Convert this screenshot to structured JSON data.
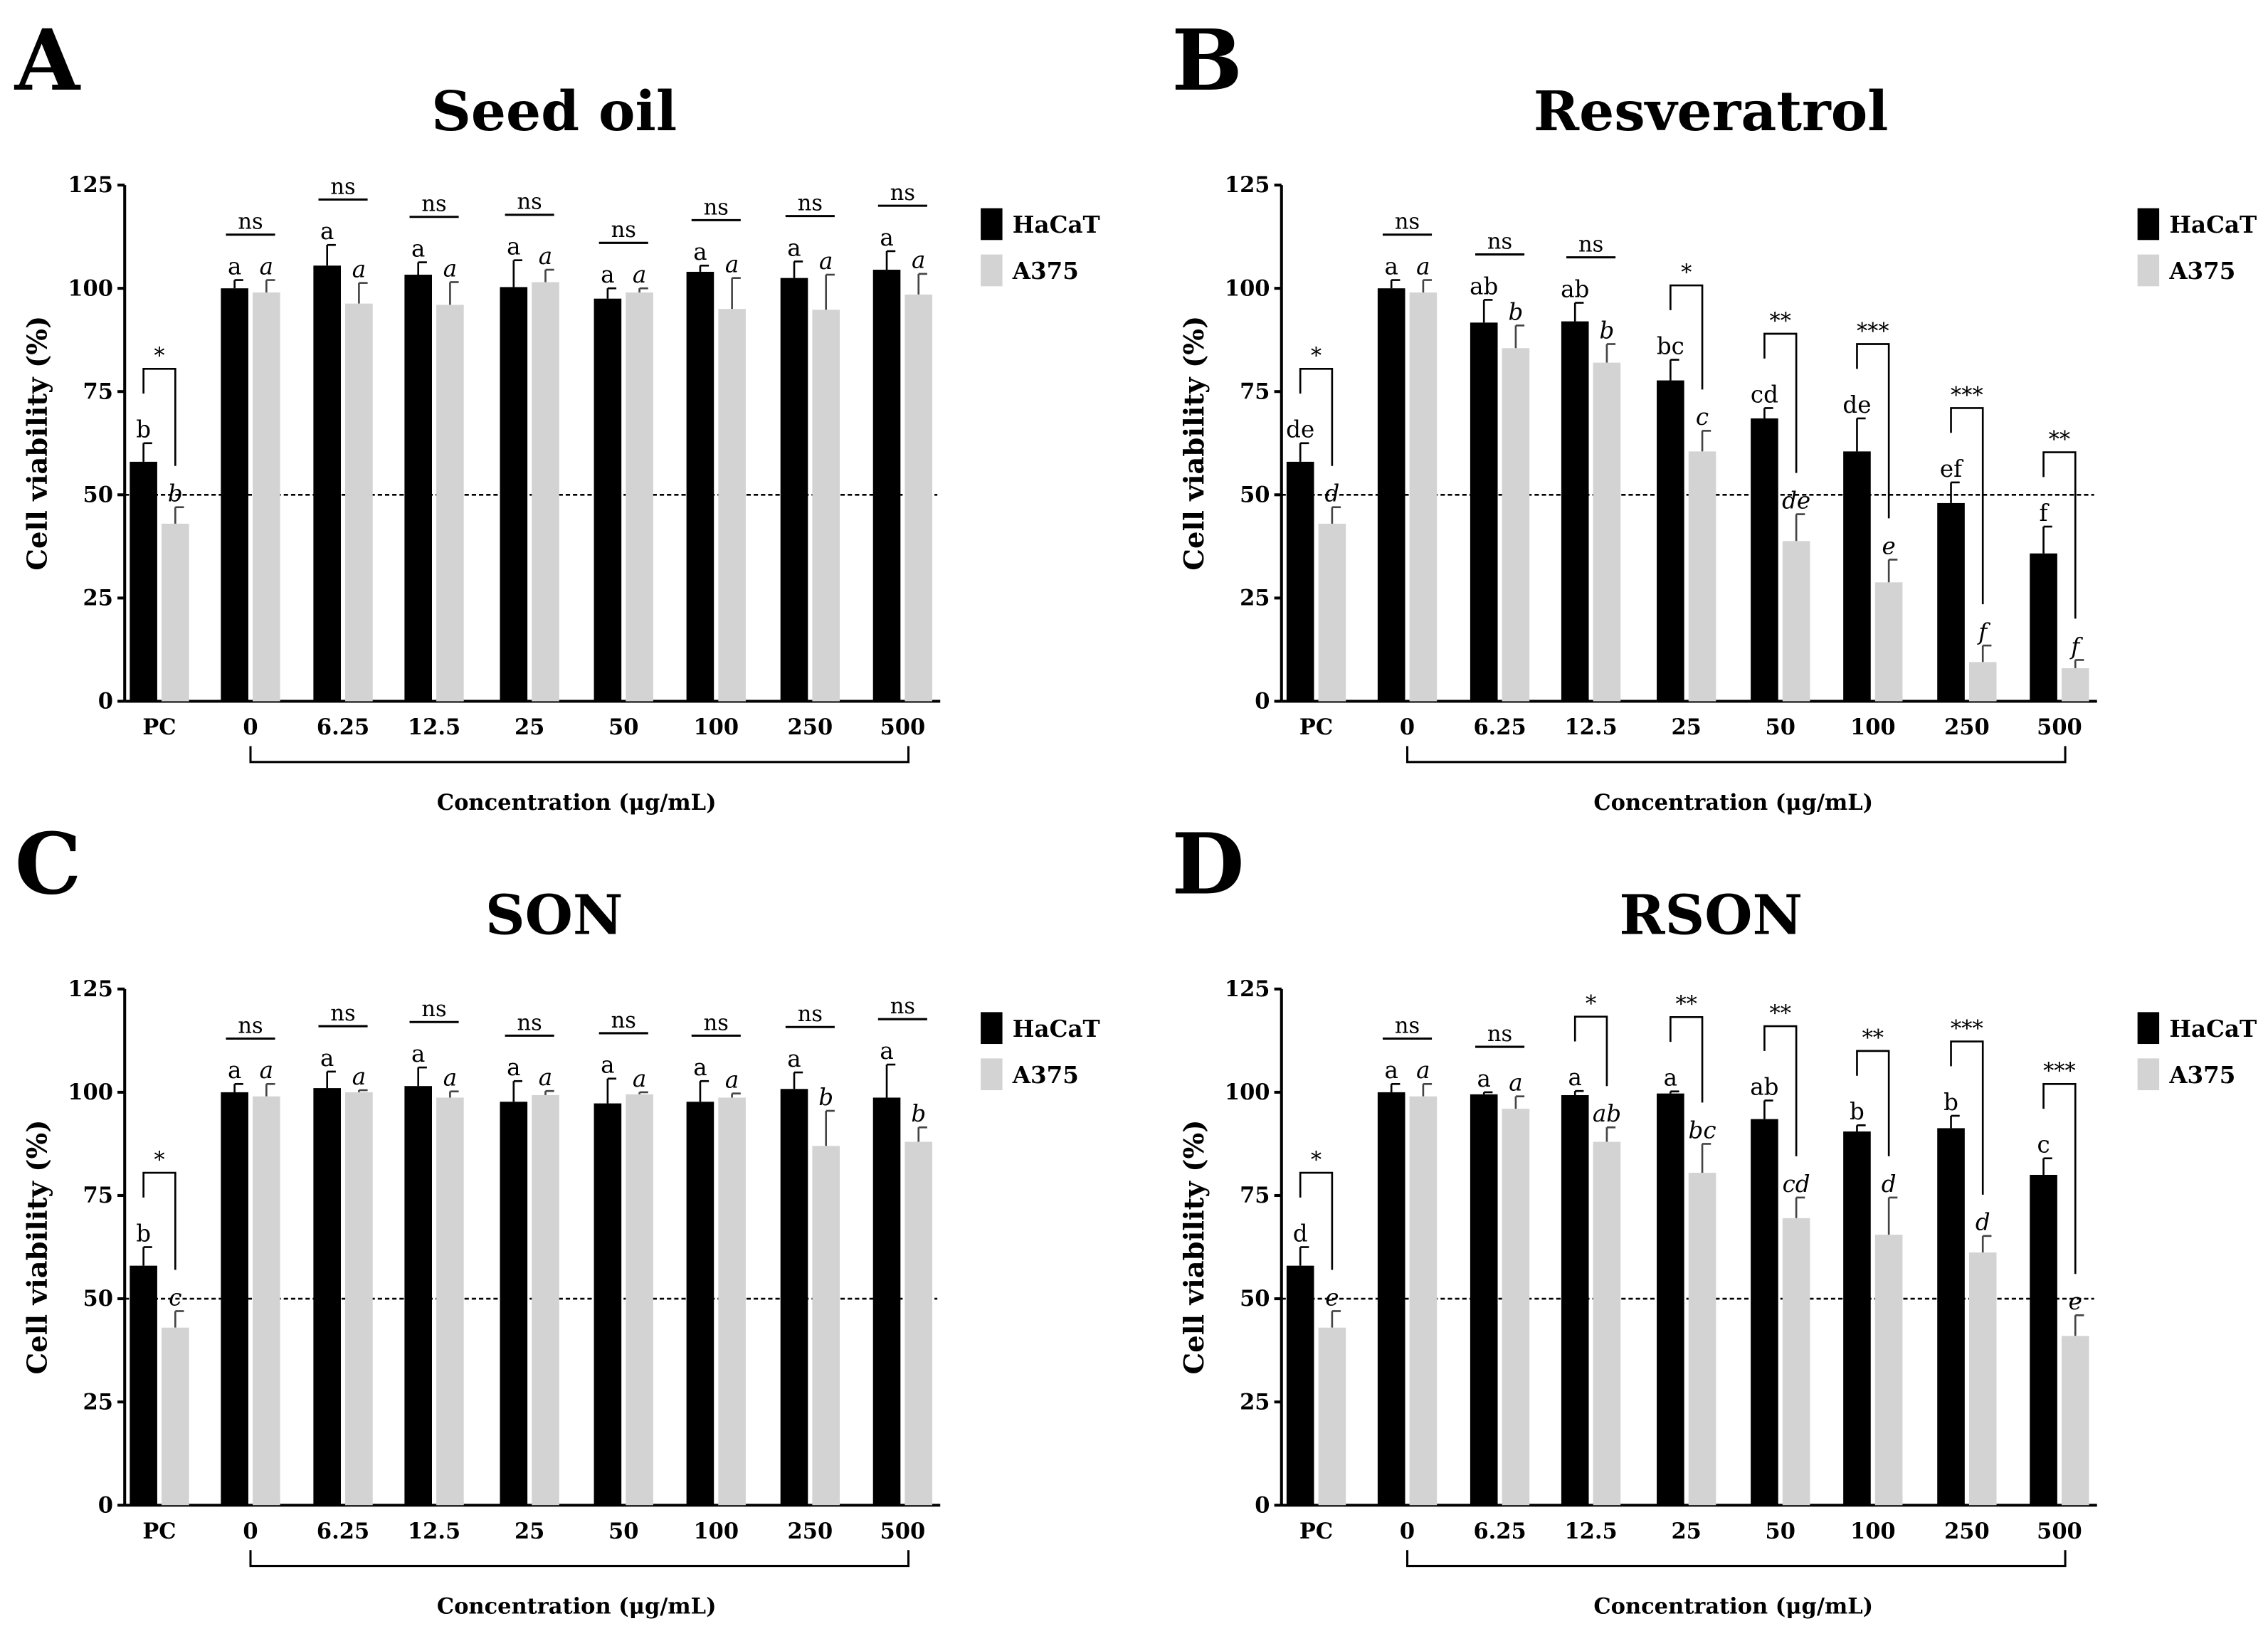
{
  "chart_data": [
    {
      "type": "bar",
      "panel_label": "A",
      "title": "Seed oil",
      "xlabel": "Concentration (μg/mL)",
      "ylabel": "Cell viability (%)",
      "ylim": [
        0,
        125
      ],
      "yticks": [
        "0",
        "25",
        "50",
        "75",
        "100",
        "125"
      ],
      "reference_line": 50,
      "legend": "top-right",
      "categories": [
        "PC",
        "0",
        "6.25",
        "12.5",
        "25",
        "50",
        "100",
        "250",
        "500"
      ],
      "series": [
        {
          "name": "HaCaT",
          "color": "#000000",
          "values": [
            58,
            100,
            105.5,
            103.3,
            100.3,
            97.5,
            104,
            102.5,
            104.5
          ],
          "errors": [
            4.5,
            2,
            5,
            3,
            6.5,
            2.5,
            1.5,
            4,
            4.5
          ],
          "letters": [
            "b",
            "a",
            "a",
            "a",
            "a",
            "a",
            "a",
            "a",
            "a"
          ]
        },
        {
          "name": "A375",
          "color": "#d3d3d3",
          "values": [
            43,
            99,
            96.3,
            96,
            101.5,
            99,
            95,
            94.8,
            98.5
          ],
          "errors": [
            4,
            3,
            5,
            5.5,
            3,
            1,
            7.5,
            8.5,
            5
          ],
          "letters": [
            "b",
            "a",
            "a",
            "a",
            "a",
            "a",
            "a",
            "a",
            "a"
          ]
        }
      ],
      "significance": [
        "*",
        "ns",
        "ns",
        "ns",
        "ns",
        "ns",
        "ns",
        "ns",
        "ns"
      ]
    },
    {
      "type": "bar",
      "panel_label": "B",
      "title": "Resveratrol",
      "xlabel": "Concentration (μg/mL)",
      "ylabel": "Cell viability (%)",
      "ylim": [
        0,
        125
      ],
      "yticks": [
        "0",
        "25",
        "50",
        "75",
        "100",
        "125"
      ],
      "reference_line": 50,
      "legend": "top-right",
      "categories": [
        "PC",
        "0",
        "6.25",
        "12.5",
        "25",
        "50",
        "100",
        "250",
        "500"
      ],
      "series": [
        {
          "name": "HaCaT",
          "color": "#000000",
          "values": [
            58,
            100,
            91.7,
            92,
            77.7,
            68.5,
            60.5,
            48,
            35.8
          ],
          "errors": [
            4.5,
            2,
            5.5,
            4.5,
            5,
            2.5,
            8,
            5,
            6.5
          ],
          "letters": [
            "de",
            "a",
            "ab",
            "ab",
            "bc",
            "cd",
            "de",
            "ef",
            "f"
          ]
        },
        {
          "name": "A375",
          "color": "#d3d3d3",
          "values": [
            43,
            99,
            85.5,
            82,
            60.5,
            38.8,
            28.8,
            9.5,
            8
          ],
          "errors": [
            4,
            3,
            5.5,
            4.5,
            5,
            6.5,
            5.5,
            4,
            2
          ],
          "letters": [
            "d",
            "a",
            "b",
            "b",
            "c",
            "de",
            "e",
            "f",
            "f"
          ]
        }
      ],
      "significance": [
        "*",
        "ns",
        "ns",
        "ns",
        "*",
        "**",
        "***",
        "***",
        "**"
      ]
    },
    {
      "type": "bar",
      "panel_label": "C",
      "title": "SON",
      "xlabel": "Concentration (μg/mL)",
      "ylabel": "Cell viability (%)",
      "ylim": [
        0,
        125
      ],
      "yticks": [
        "0",
        "25",
        "50",
        "75",
        "100",
        "125"
      ],
      "reference_line": 50,
      "legend": "top-right",
      "categories": [
        "PC",
        "0",
        "6.25",
        "12.5",
        "25",
        "50",
        "100",
        "250",
        "500"
      ],
      "series": [
        {
          "name": "HaCaT",
          "color": "#000000",
          "values": [
            58,
            100,
            101,
            101.5,
            97.7,
            97.3,
            97.7,
            100.8,
            98.7
          ],
          "errors": [
            4.5,
            2,
            4,
            4.5,
            5,
            6,
            5,
            4,
            8
          ],
          "letters": [
            "b",
            "a",
            "a",
            "a",
            "a",
            "a",
            "a",
            "a",
            "a"
          ]
        },
        {
          "name": "A375",
          "color": "#d3d3d3",
          "values": [
            43,
            99,
            100,
            98.7,
            99.3,
            99.5,
            98.7,
            87,
            88
          ],
          "errors": [
            4,
            3,
            0.5,
            1.5,
            1,
            0.5,
            1,
            8.5,
            3.5
          ],
          "letters": [
            "c",
            "a",
            "a",
            "a",
            "a",
            "a",
            "a",
            "b",
            "b"
          ]
        }
      ],
      "significance": [
        "*",
        "ns",
        "ns",
        "ns",
        "ns",
        "ns",
        "ns",
        "ns",
        "ns"
      ]
    },
    {
      "type": "bar",
      "panel_label": "D",
      "title": "RSON",
      "xlabel": "Concentration (μg/mL)",
      "ylabel": "Cell viability (%)",
      "ylim": [
        0,
        125
      ],
      "yticks": [
        "0",
        "25",
        "50",
        "75",
        "100",
        "125"
      ],
      "reference_line": 50,
      "legend": "top-right",
      "categories": [
        "PC",
        "0",
        "6.25",
        "12.5",
        "25",
        "50",
        "100",
        "250",
        "500"
      ],
      "series": [
        {
          "name": "HaCaT",
          "color": "#000000",
          "values": [
            58,
            100,
            99.5,
            99.3,
            99.7,
            93.5,
            90.5,
            91.3,
            80
          ],
          "errors": [
            4.5,
            2,
            0.5,
            1,
            0.5,
            4.5,
            1.5,
            3,
            4
          ],
          "letters": [
            "d",
            "a",
            "a",
            "a",
            "a",
            "ab",
            "b",
            "b",
            "c"
          ]
        },
        {
          "name": "A375",
          "color": "#d3d3d3",
          "values": [
            43,
            99,
            96,
            88,
            80.5,
            69.5,
            65.5,
            61.2,
            41
          ],
          "errors": [
            4,
            3,
            3,
            3.5,
            7,
            5,
            9,
            4,
            5
          ],
          "letters": [
            "e",
            "a",
            "a",
            "ab",
            "bc",
            "cd",
            "d",
            "d",
            "e"
          ]
        }
      ],
      "significance": [
        "*",
        "ns",
        "ns",
        "*",
        "**",
        "**",
        "**",
        "***",
        "***"
      ]
    }
  ]
}
